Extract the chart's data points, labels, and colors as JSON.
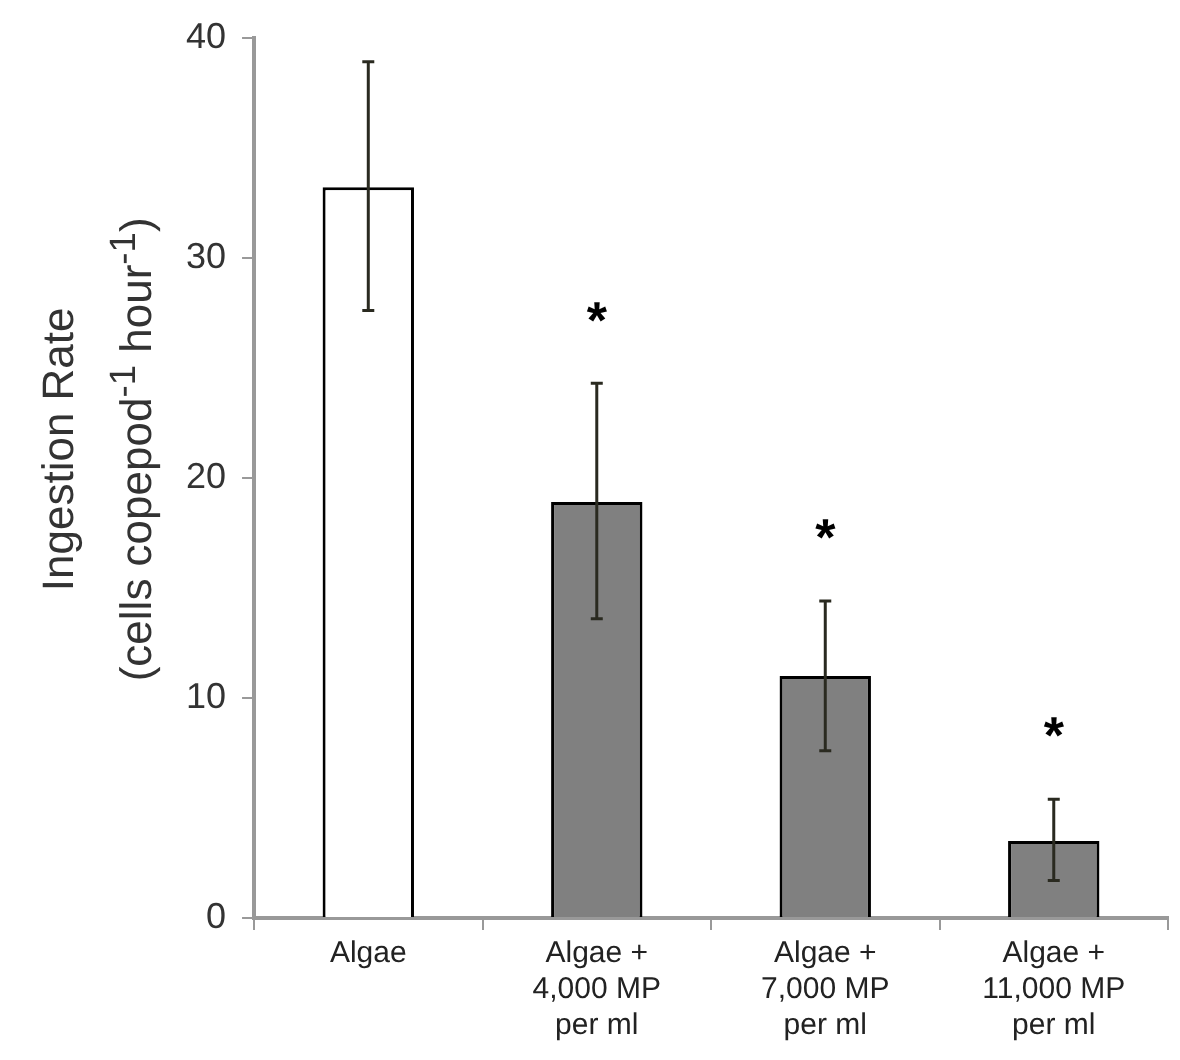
{
  "chart_data": {
    "type": "bar",
    "ylabel": "Ingestion Rate\n(cells  copepod$^{-1}$ hour$^{-1}$)",
    "categories": [
      "Algae",
      "Algae + 4,000 MP per ml",
      "Algae + 7,000 MP per ml",
      "Algae + 11,000 MP per ml"
    ],
    "values": [
      33.2,
      18.9,
      11.0,
      3.5
    ],
    "colors": [
      "#ffffff",
      "#808080",
      "#808080",
      "#808080"
    ],
    "errors": [
      [
        27.6,
        38.9
      ],
      [
        13.6,
        24.3
      ],
      [
        7.6,
        14.4
      ],
      [
        1.7,
        5.4
      ]
    ],
    "ylim": [
      0,
      40
    ],
    "yticks": [
      0,
      10,
      20,
      30,
      40
    ],
    "grid": false,
    "legend": false,
    "annotations": [
      "*",
      "*",
      "*"
    ]
  }
}
